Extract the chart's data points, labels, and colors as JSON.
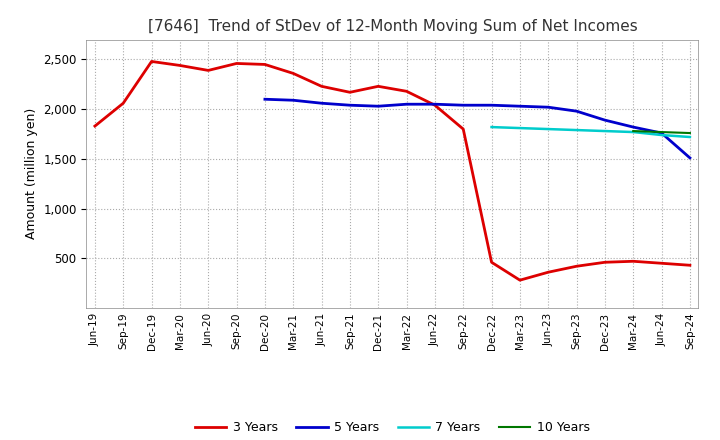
{
  "title": "[7646]  Trend of StDev of 12-Month Moving Sum of Net Incomes",
  "ylabel": "Amount (million yen)",
  "ylim": [
    0,
    2700
  ],
  "yticks": [
    500,
    1000,
    1500,
    2000,
    2500
  ],
  "background_color": "#ffffff",
  "grid_color": "#aaaaaa",
  "title_color": "#333333",
  "x_labels": [
    "Jun-19",
    "Sep-19",
    "Dec-19",
    "Mar-20",
    "Jun-20",
    "Sep-20",
    "Dec-20",
    "Mar-21",
    "Jun-21",
    "Sep-21",
    "Dec-21",
    "Mar-22",
    "Jun-22",
    "Sep-22",
    "Dec-22",
    "Mar-23",
    "Jun-23",
    "Sep-23",
    "Dec-23",
    "Mar-24",
    "Jun-24",
    "Sep-24"
  ],
  "series_order": [
    "3 Years",
    "5 Years",
    "7 Years",
    "10 Years"
  ],
  "series": {
    "3 Years": {
      "color": "#dd0000",
      "linewidth": 2.0,
      "values": [
        1830,
        2060,
        2480,
        2440,
        2390,
        2460,
        2450,
        2360,
        2230,
        2170,
        2230,
        2180,
        2040,
        1800,
        460,
        280,
        360,
        420,
        460,
        470,
        450,
        430
      ]
    },
    "5 Years": {
      "color": "#0000cc",
      "linewidth": 2.0,
      "values": [
        null,
        null,
        null,
        null,
        null,
        null,
        2100,
        2090,
        2060,
        2040,
        2030,
        2050,
        2050,
        2040,
        2040,
        2030,
        2020,
        1980,
        1890,
        1820,
        1760,
        1510
      ]
    },
    "7 Years": {
      "color": "#00cccc",
      "linewidth": 1.8,
      "values": [
        null,
        null,
        null,
        null,
        null,
        null,
        null,
        null,
        null,
        null,
        null,
        null,
        null,
        null,
        1820,
        1810,
        1800,
        1790,
        1780,
        1770,
        1740,
        1720
      ]
    },
    "10 Years": {
      "color": "#007700",
      "linewidth": 1.5,
      "values": [
        null,
        null,
        null,
        null,
        null,
        null,
        null,
        null,
        null,
        null,
        null,
        null,
        null,
        null,
        null,
        null,
        null,
        null,
        null,
        1780,
        1770,
        1760
      ]
    }
  }
}
